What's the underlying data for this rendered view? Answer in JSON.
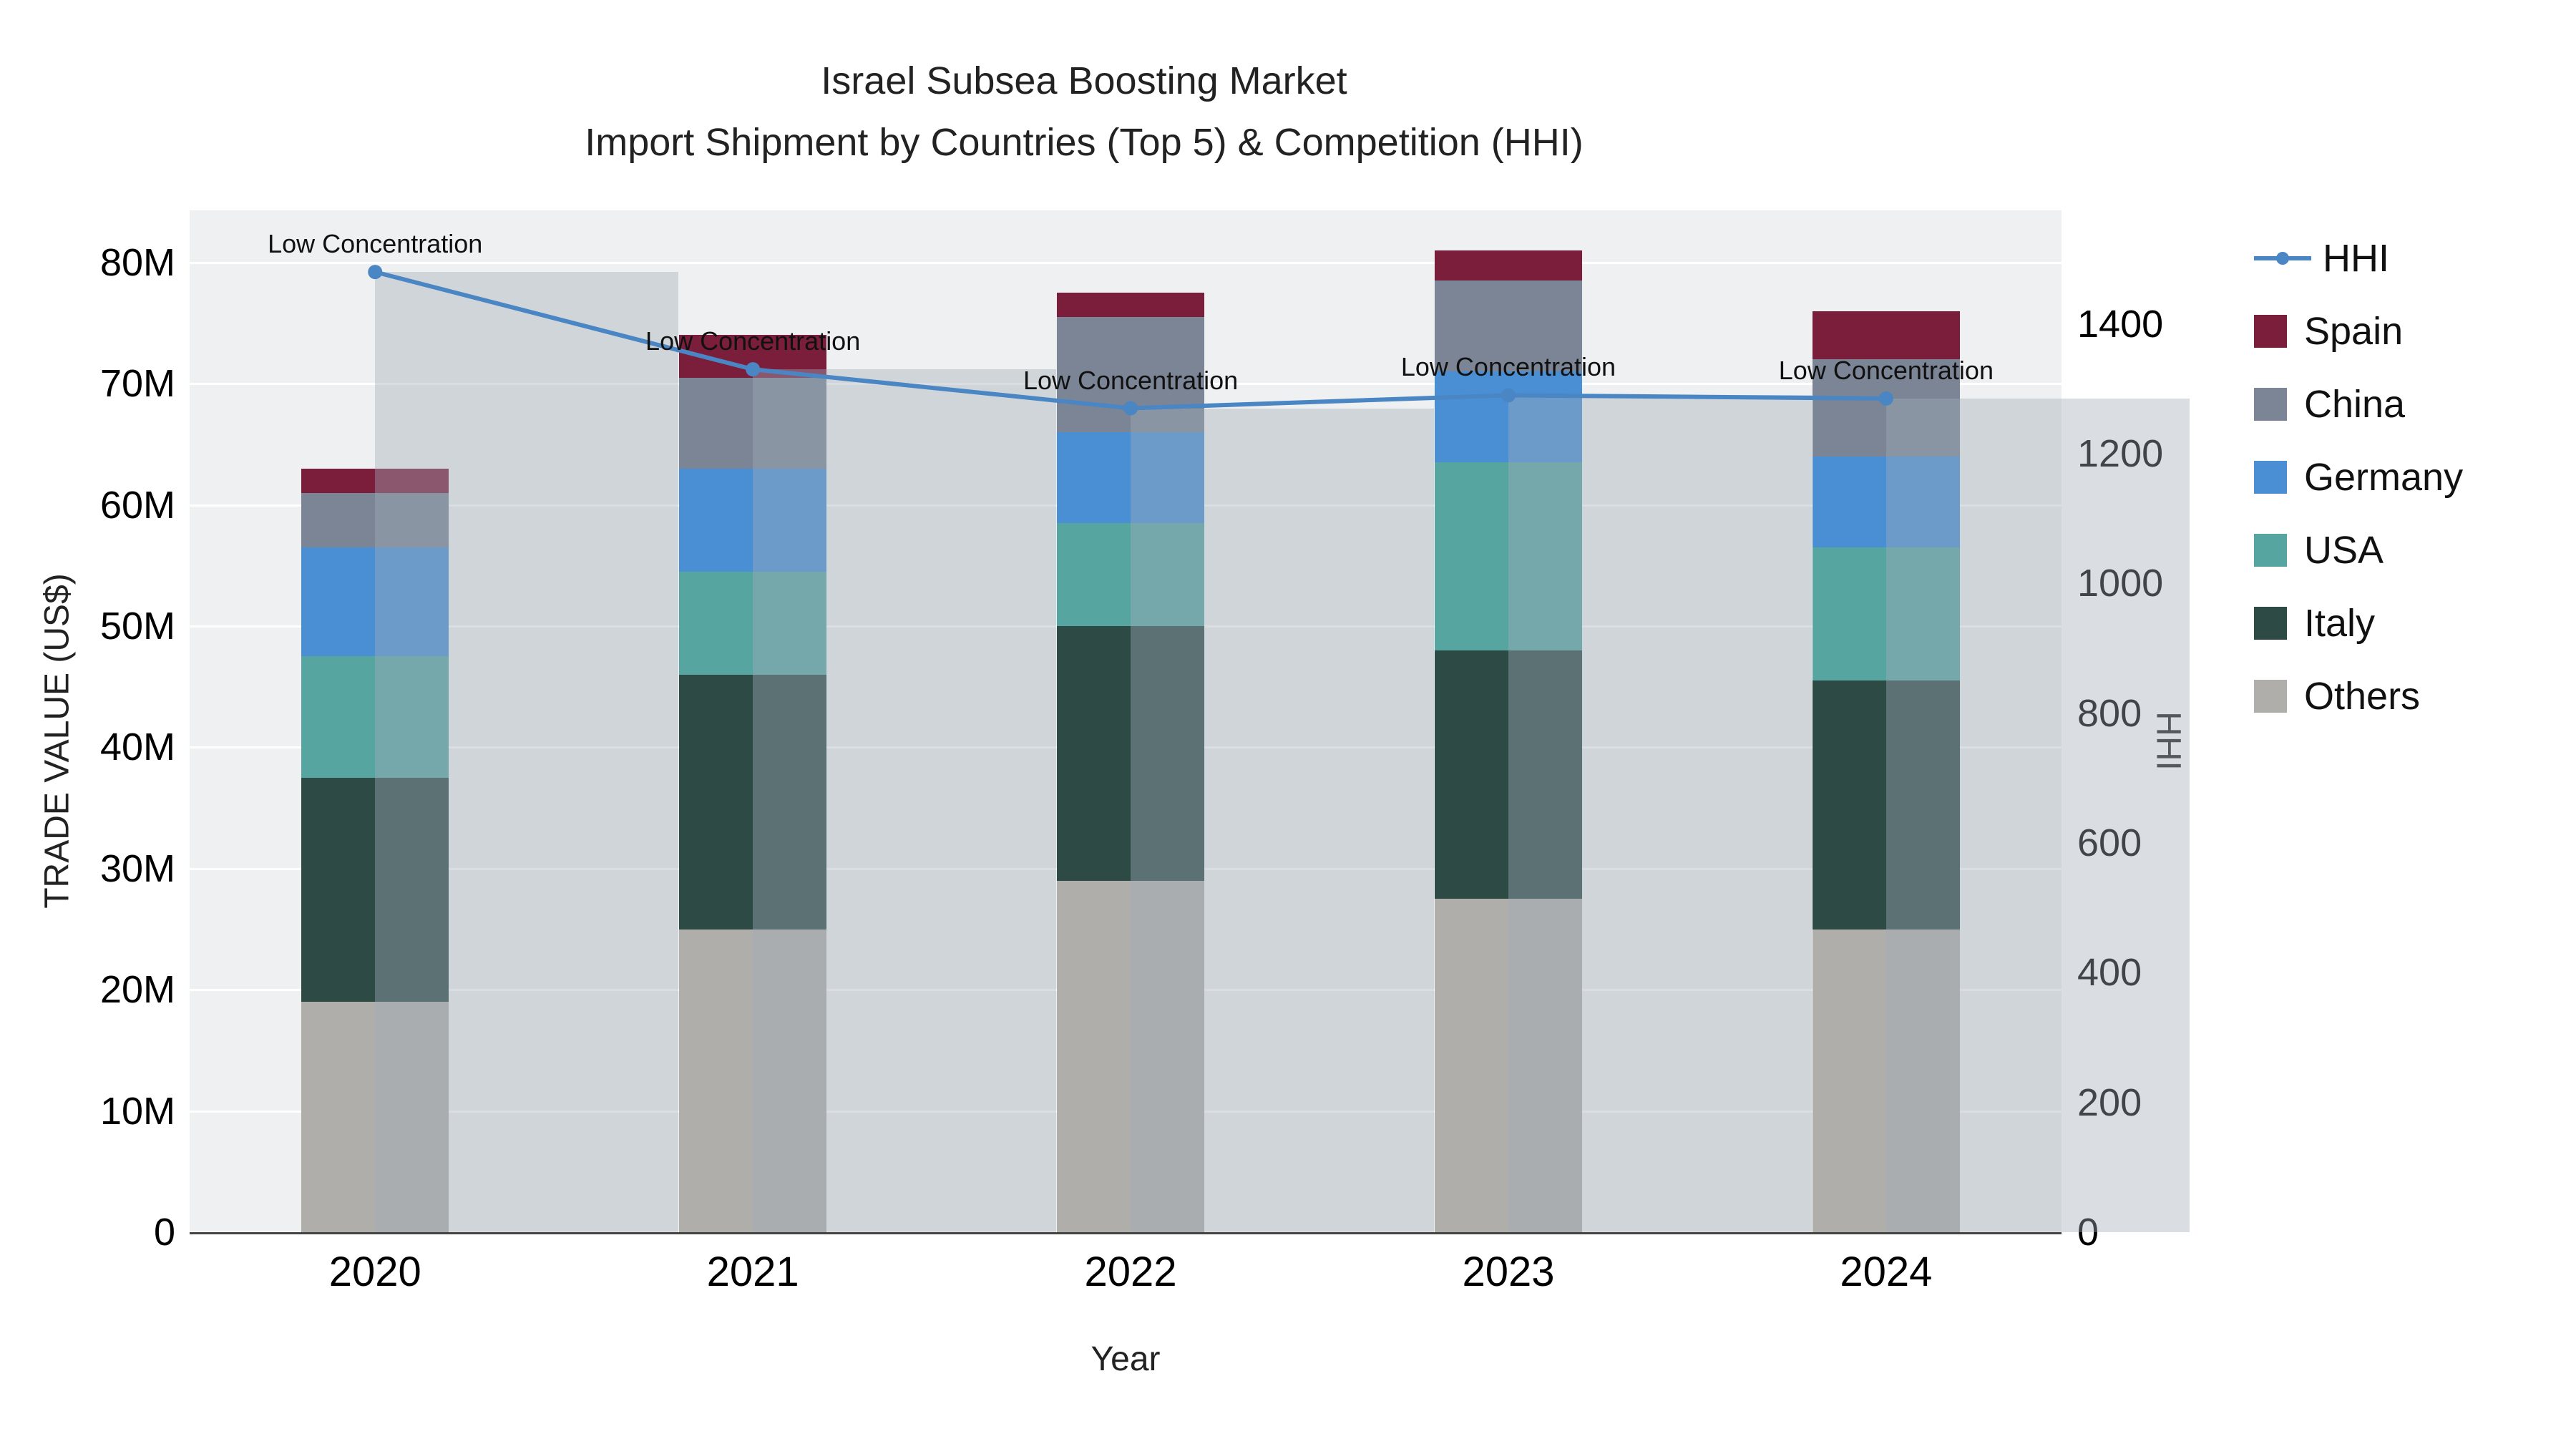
{
  "chart_data": {
    "type": "bar",
    "title": "Israel Subsea Boosting Market",
    "subtitle": "Import Shipment by Countries (Top 5) & Competition (HHI)",
    "xlabel": "Year",
    "ylabel_left": "TRADE VALUE (US$)",
    "ylabel_right": "HHI",
    "categories": [
      "2020",
      "2021",
      "2022",
      "2023",
      "2024"
    ],
    "bar_unit": "M US$",
    "series": [
      {
        "name": "Others",
        "color": "#b0aeaa",
        "values": [
          19.0,
          25.0,
          29.0,
          27.5,
          25.0
        ]
      },
      {
        "name": "Italy",
        "color": "#2d4a45",
        "values": [
          18.5,
          21.0,
          21.0,
          20.5,
          20.5
        ]
      },
      {
        "name": "USA",
        "color": "#57a5a0",
        "values": [
          10.0,
          8.5,
          8.5,
          15.5,
          11.0
        ]
      },
      {
        "name": "Germany",
        "color": "#4a8fd4",
        "values": [
          9.0,
          8.5,
          7.5,
          7.5,
          7.5
        ]
      },
      {
        "name": "China",
        "color": "#7b8595",
        "values": [
          4.5,
          7.5,
          9.5,
          7.5,
          8.0
        ]
      },
      {
        "name": "Spain",
        "color": "#7a1e3c",
        "values": [
          2.0,
          3.5,
          2.0,
          2.5,
          4.0
        ]
      }
    ],
    "line_series": {
      "name": "HHI",
      "color": "#4a86c4",
      "values": [
        1480,
        1330,
        1270,
        1290,
        1285
      ],
      "annotations": [
        "Low Concentration",
        "Low Concentration",
        "Low Concentration",
        "Low Concentration",
        "Low Concentration"
      ]
    },
    "y_left": {
      "tick_values": [
        0,
        10,
        20,
        30,
        40,
        50,
        60,
        70,
        80
      ],
      "tick_labels": [
        "0",
        "10M",
        "20M",
        "30M",
        "40M",
        "50M",
        "60M",
        "70M",
        "80M"
      ],
      "max": 84.3
    },
    "y_right": {
      "tick_values": [
        0,
        200,
        400,
        600,
        800,
        1000,
        1200,
        1400
      ],
      "tick_labels": [
        "0",
        "200",
        "400",
        "600",
        "800",
        "1000",
        "1200",
        "1400"
      ],
      "max": 1575
    },
    "grid": true,
    "legend_position": "right",
    "legend": [
      {
        "label": "HHI",
        "type": "line",
        "color": "#4a86c4"
      },
      {
        "label": "Spain",
        "type": "swatch",
        "color": "#7a1e3c"
      },
      {
        "label": "China",
        "type": "swatch",
        "color": "#7b8595"
      },
      {
        "label": "Germany",
        "type": "swatch",
        "color": "#4a8fd4"
      },
      {
        "label": "USA",
        "type": "swatch",
        "color": "#57a5a0"
      },
      {
        "label": "Italy",
        "type": "swatch",
        "color": "#2d4a45"
      },
      {
        "label": "Others",
        "type": "swatch",
        "color": "#b0aeaa"
      }
    ]
  }
}
